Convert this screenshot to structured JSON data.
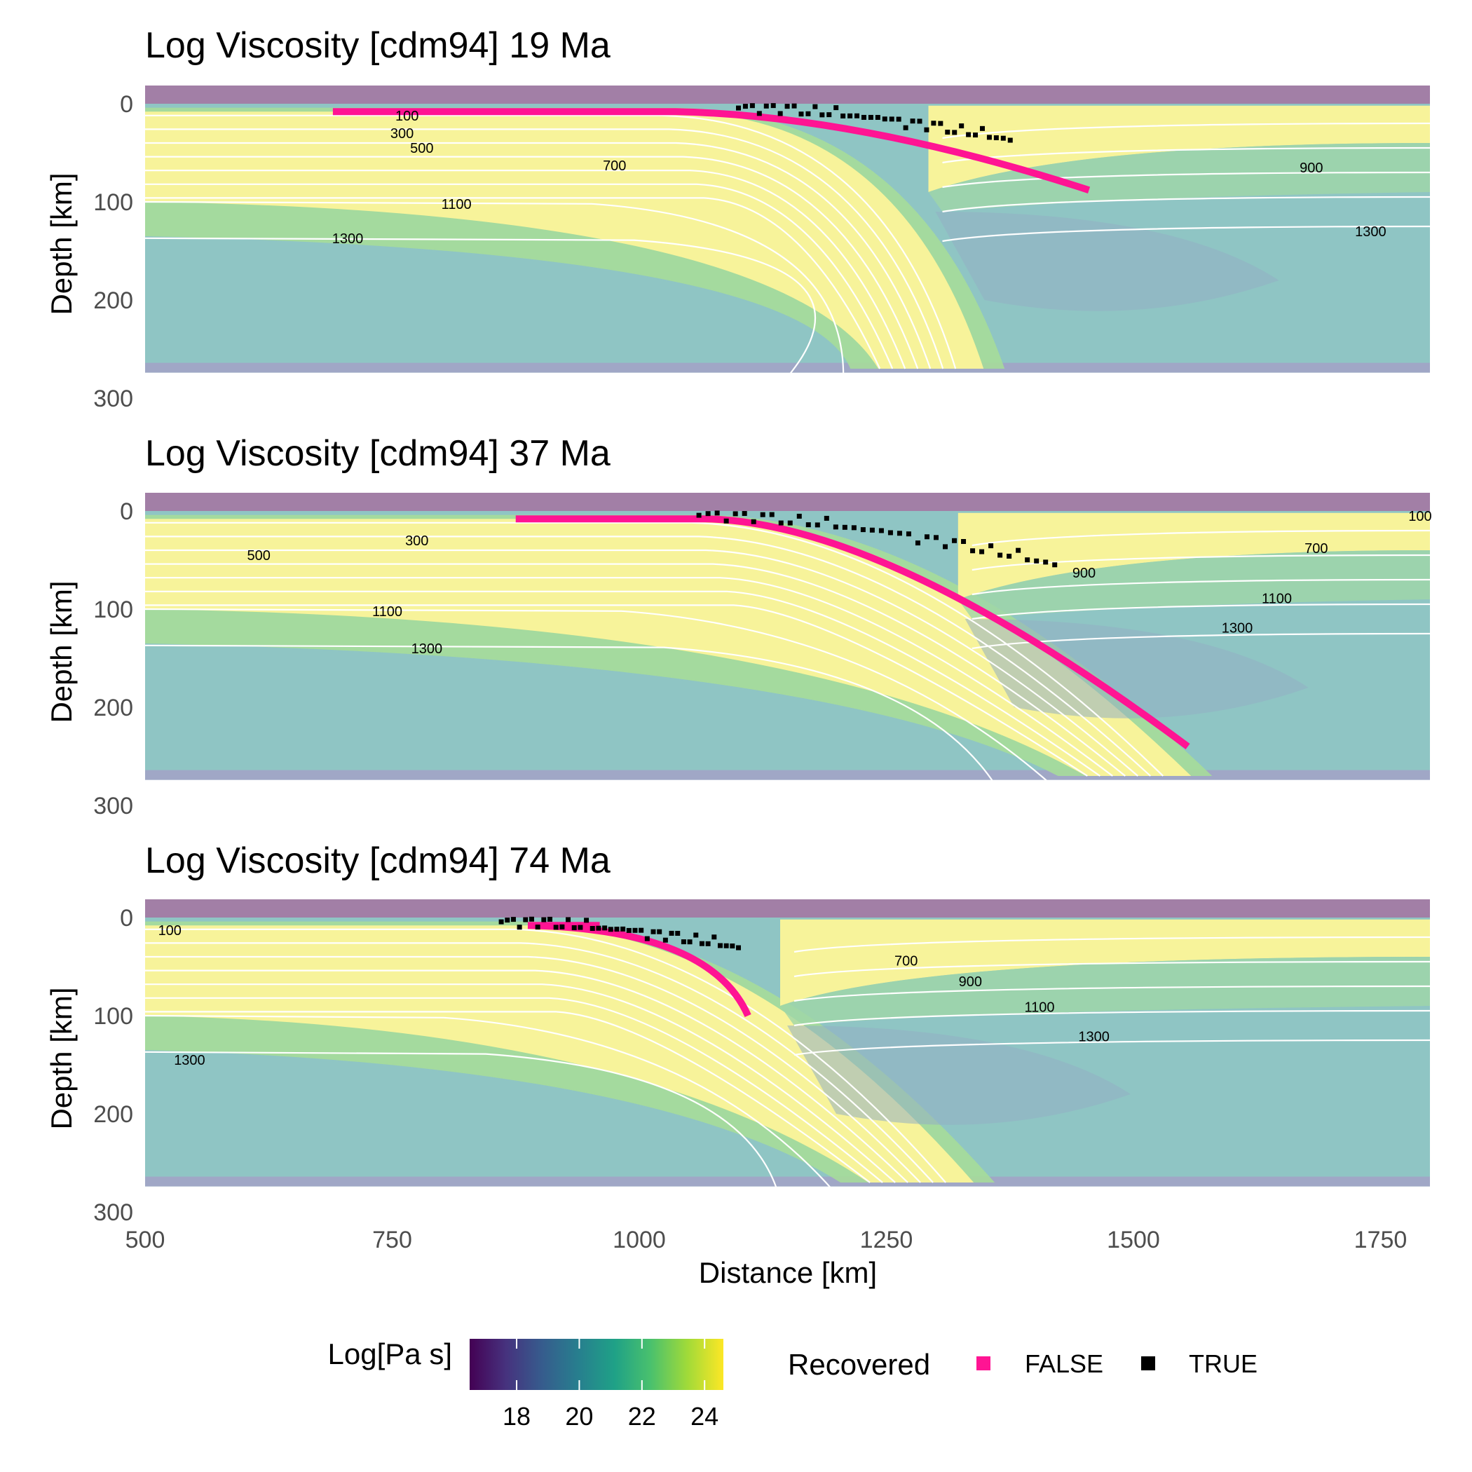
{
  "chart_data": {
    "type": "heatmap",
    "xlabel": "Distance [km]",
    "ylabel": "Depth [km]",
    "xlim": [
      500,
      1800
    ],
    "ylim": [
      300,
      0
    ],
    "x_ticks": [
      500,
      750,
      1000,
      1250,
      1500,
      1750
    ],
    "y_ticks": [
      0,
      100,
      200,
      300
    ],
    "panels": [
      {
        "title": "Log Viscosity [cdm94] 19 Ma",
        "trench_km": 1250,
        "slab_tip": [
          1320,
          270
        ],
        "contour_labels": [
          {
            "text": "100",
            "x": 765,
            "y": 12
          },
          {
            "text": "300",
            "x": 760,
            "y": 30
          },
          {
            "text": "500",
            "x": 780,
            "y": 45
          },
          {
            "text": "700",
            "x": 975,
            "y": 63
          },
          {
            "text": "1100",
            "x": 815,
            "y": 102
          },
          {
            "text": "1300",
            "x": 705,
            "y": 137
          },
          {
            "text": "900",
            "x": 1680,
            "y": 65
          },
          {
            "text": "1300",
            "x": 1740,
            "y": 130
          }
        ],
        "recovered_false": {
          "x_start": 690,
          "x_end": 1455,
          "depth_end": 88
        },
        "recovered_true": {
          "x_start": 1100,
          "x_end": 1375
        }
      },
      {
        "title": "Log Viscosity [cdm94] 37 Ma",
        "trench_km": 1280,
        "slab_tip": [
          1530,
          270
        ],
        "contour_labels": [
          {
            "text": "300",
            "x": 775,
            "y": 30
          },
          {
            "text": "500",
            "x": 615,
            "y": 45
          },
          {
            "text": "1100",
            "x": 745,
            "y": 102
          },
          {
            "text": "1300",
            "x": 785,
            "y": 140
          },
          {
            "text": "100",
            "x": 1790,
            "y": 5
          },
          {
            "text": "700",
            "x": 1685,
            "y": 38
          },
          {
            "text": "900",
            "x": 1450,
            "y": 63
          },
          {
            "text": "1100",
            "x": 1645,
            "y": 89
          },
          {
            "text": "1300",
            "x": 1605,
            "y": 119
          }
        ],
        "recovered_false": {
          "x_start": 875,
          "x_end": 1555,
          "depth_end": 240
        },
        "recovered_true": {
          "x_start": 1060,
          "x_end": 1420
        }
      },
      {
        "title": "Log Viscosity [cdm94] 74 Ma",
        "trench_km": 1100,
        "slab_tip": [
          1310,
          270
        ],
        "contour_labels": [
          {
            "text": "100",
            "x": 525,
            "y": 13
          },
          {
            "text": "1300",
            "x": 545,
            "y": 145
          },
          {
            "text": "700",
            "x": 1270,
            "y": 44
          },
          {
            "text": "900",
            "x": 1335,
            "y": 65
          },
          {
            "text": "1100",
            "x": 1405,
            "y": 91
          },
          {
            "text": "1300",
            "x": 1460,
            "y": 121
          }
        ],
        "recovered_false": {
          "x_start": 960,
          "x_end": 1110,
          "depth_end": 100
        },
        "recovered_true": {
          "x_start": 860,
          "x_end": 1100
        }
      }
    ],
    "colorbar": {
      "title": "Log[Pa s]",
      "ticks": [
        18,
        20,
        22,
        24
      ],
      "range": [
        16.5,
        24.6
      ],
      "stops": [
        "#440154",
        "#46327e",
        "#365c8d",
        "#277f8e",
        "#1fa187",
        "#4ac16d",
        "#a0da39",
        "#fde725"
      ]
    },
    "legend": {
      "title": "Recovered",
      "entries": [
        {
          "label": "FALSE",
          "color": "#ff1493"
        },
        {
          "label": "TRUE",
          "color": "#000000"
        }
      ]
    }
  }
}
